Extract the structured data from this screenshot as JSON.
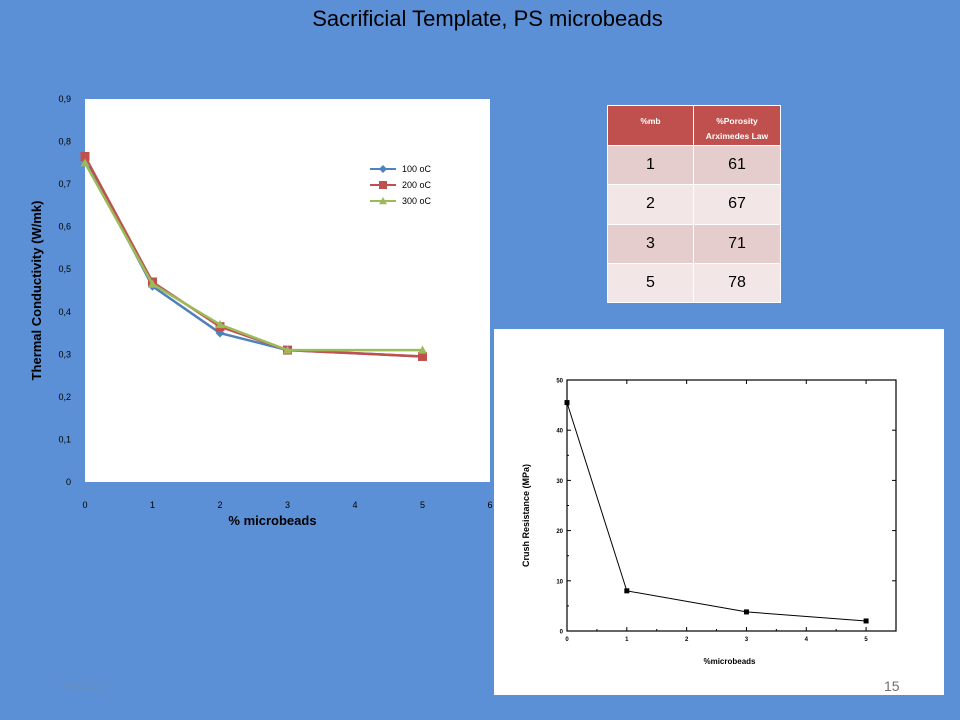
{
  "slide": {
    "title": "Sacrificial Template, PS microbeads",
    "footer_date": "9/6/2013",
    "page_number": "15"
  },
  "table": {
    "headers": [
      "%mb",
      "%Porosity Arximedes Law"
    ],
    "rows": [
      [
        "1",
        "61"
      ],
      [
        "2",
        "67"
      ],
      [
        "3",
        "71"
      ],
      [
        "5",
        "78"
      ]
    ],
    "header_color": "#c0504d"
  },
  "chart_data": [
    {
      "type": "line",
      "title": "",
      "xlabel": "% microbeads",
      "ylabel": "Thermal Conductivity (W/mk)",
      "xlim": [
        0,
        6
      ],
      "ylim": [
        0,
        0.9
      ],
      "x_ticks": [
        "0",
        "1",
        "2",
        "3",
        "4",
        "5",
        "6"
      ],
      "y_ticks": [
        "0",
        "0,1",
        "0,2",
        "0,3",
        "0,4",
        "0,5",
        "0,6",
        "0,7",
        "0,8",
        "0,9"
      ],
      "grid": false,
      "legend_position": "right, upper",
      "series": [
        {
          "name": "100 oC",
          "x": [
            0,
            1,
            2,
            3,
            5
          ],
          "y": [
            0.76,
            0.46,
            0.35,
            0.31,
            0.295
          ],
          "color": "#4f81bd",
          "marker": "diamond"
        },
        {
          "name": "200 oC",
          "x": [
            0,
            1,
            2,
            3,
            5
          ],
          "y": [
            0.765,
            0.47,
            0.365,
            0.31,
            0.295
          ],
          "color": "#c0504d",
          "marker": "square"
        },
        {
          "name": "300 oC",
          "x": [
            0,
            1,
            2,
            3,
            5
          ],
          "y": [
            0.75,
            0.465,
            0.37,
            0.31,
            0.31
          ],
          "color": "#9bbb59",
          "marker": "triangle"
        }
      ]
    },
    {
      "type": "line",
      "title": "",
      "xlabel": "%microbeads",
      "ylabel": "Crush Resistance (MPa)",
      "xlim": [
        0,
        5.5
      ],
      "ylim": [
        0,
        50
      ],
      "x_ticks": [
        "0",
        "1",
        "2",
        "3",
        "4",
        "5"
      ],
      "y_ticks": [
        "0",
        "10",
        "20",
        "30",
        "40",
        "50"
      ],
      "grid": false,
      "series": [
        {
          "x": [
            0,
            1,
            3,
            5
          ],
          "y": [
            45.5,
            8,
            3.8,
            2
          ],
          "color": "#000000",
          "marker": "square"
        }
      ]
    }
  ]
}
